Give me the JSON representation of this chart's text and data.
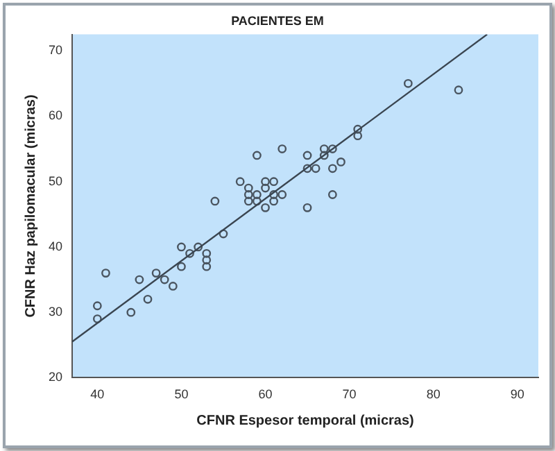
{
  "chart_data": {
    "type": "scatter",
    "title": "PACIENTES EM",
    "xlabel": "CFNR Espesor temporal (micras)",
    "ylabel": "CFNR Haz papilomacular (micras)",
    "xlim": [
      37,
      92.5
    ],
    "ylim": [
      20,
      72.5
    ],
    "xticks": [
      40,
      50,
      60,
      70,
      80,
      90
    ],
    "yticks": [
      20,
      30,
      40,
      50,
      60,
      70
    ],
    "grid": false,
    "legend": false,
    "series": [
      {
        "marker": "circle",
        "color": "#4a5560",
        "x": [
          40,
          40,
          41,
          44,
          45,
          46,
          47,
          48,
          49,
          50,
          50,
          51,
          52,
          53,
          53,
          53,
          54,
          55,
          57,
          58,
          58,
          58,
          59,
          59,
          59,
          60,
          60,
          60,
          61,
          61,
          61,
          62,
          62,
          65,
          65,
          66,
          65,
          67,
          67,
          68,
          68,
          68,
          69,
          71,
          71,
          77,
          83
        ],
        "values": [
          31,
          29,
          36,
          30,
          35,
          32,
          36,
          35,
          34,
          40,
          37,
          39,
          40,
          39,
          38,
          37,
          47,
          42,
          50,
          49,
          48,
          47,
          54,
          48,
          47,
          50,
          49,
          46,
          50,
          48,
          47,
          55,
          48,
          54,
          52,
          52,
          46,
          55,
          54,
          55,
          52,
          48,
          53,
          58,
          57,
          65,
          64
        ]
      },
      {
        "type": "line",
        "marker": "none",
        "color": "#3a4550",
        "x": [
          37,
          86.4
        ],
        "values": [
          25.5,
          72.5
        ]
      }
    ]
  }
}
